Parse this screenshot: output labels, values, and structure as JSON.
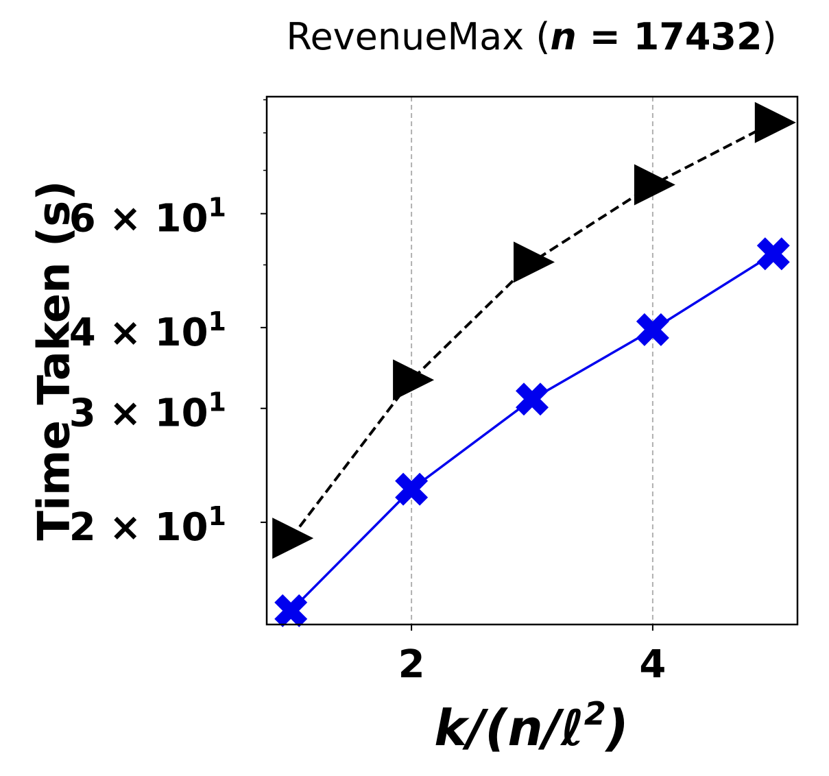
{
  "chart_data": {
    "type": "line",
    "title_prefix": "RevenueMax (",
    "title_var": "n",
    "title_eq": " = 17432",
    "title_suffix": ")",
    "ylabel": "Time Taken (s)",
    "xlabel_parts": [
      "k",
      "/(",
      "n",
      "/",
      "ℓ",
      "2",
      ")"
    ],
    "xscale": "linear",
    "yscale": "log",
    "xlim": [
      0.8,
      5.2
    ],
    "ylim": [
      13.9,
      91
    ],
    "xticks": [
      {
        "value": 2,
        "label": "2"
      },
      {
        "value": 4,
        "label": "4"
      }
    ],
    "yticks": [
      {
        "value": 20,
        "mantissa": "2",
        "times": "×",
        "base": "10",
        "exp": "1"
      },
      {
        "value": 30,
        "mantissa": "3",
        "times": "×",
        "base": "10",
        "exp": "1"
      },
      {
        "value": 40,
        "mantissa": "4",
        "times": "×",
        "base": "10",
        "exp": "1"
      },
      {
        "value": 60,
        "mantissa": "6",
        "times": "×",
        "base": "10",
        "exp": "1"
      }
    ],
    "yminor": [
      50,
      70,
      80,
      90
    ],
    "grid": {
      "x": true,
      "y": false,
      "style": "dashed"
    },
    "series": [
      {
        "color": "#000000",
        "line": "dashed",
        "marker": "triangle-right",
        "x": [
          1,
          2,
          3,
          4,
          5
        ],
        "y": [
          18.9,
          33.2,
          50.5,
          66.5,
          83.0
        ]
      },
      {
        "color": "#0000ee",
        "line": "solid",
        "marker": "x-filled",
        "x": [
          1,
          2,
          3,
          4,
          5
        ],
        "y": [
          14.6,
          22.5,
          31.0,
          39.7,
          52.0
        ]
      }
    ]
  }
}
